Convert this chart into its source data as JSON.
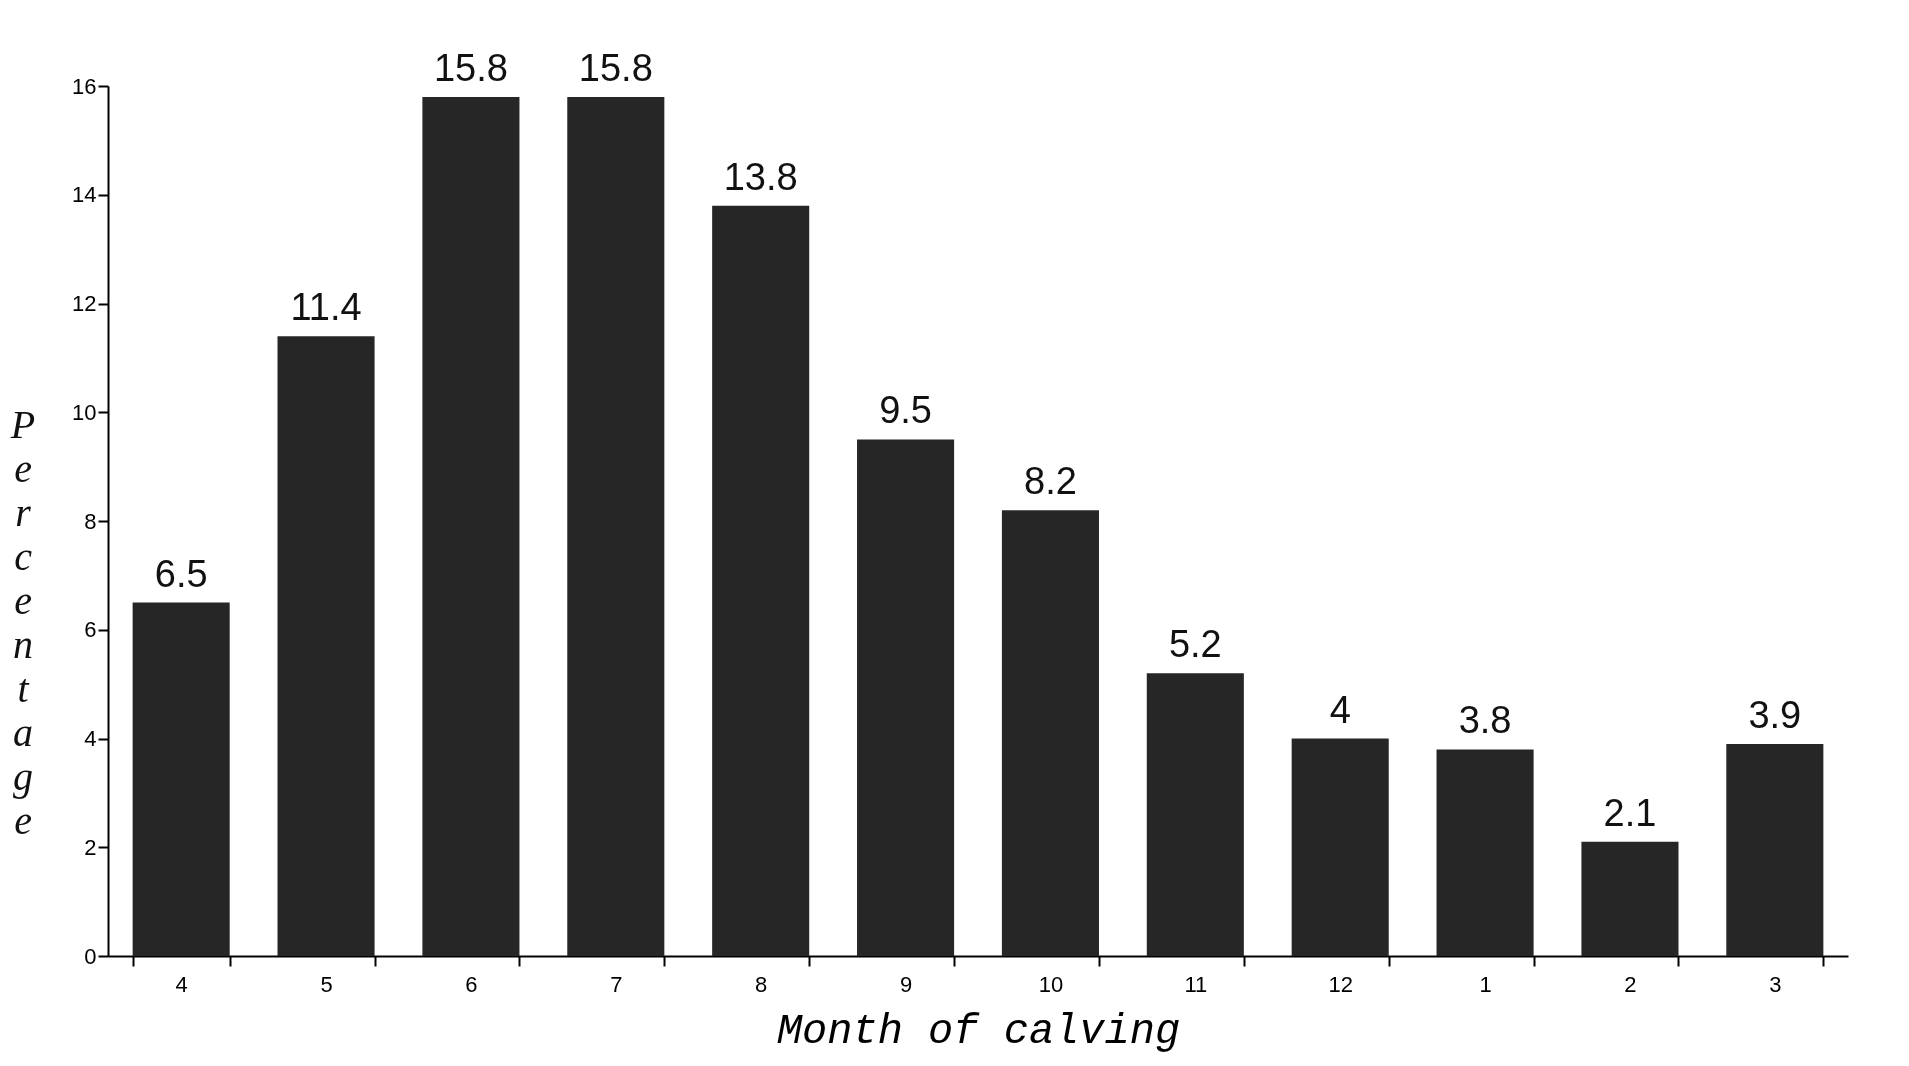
{
  "chart_data": {
    "type": "bar",
    "xlabel": "Month of calving",
    "ylabel": "Percentage",
    "categories": [
      "4",
      "5",
      "6",
      "7",
      "8",
      "9",
      "10",
      "11",
      "12",
      "1",
      "2",
      "3"
    ],
    "values": [
      6.5,
      11.4,
      15.8,
      15.8,
      13.8,
      9.5,
      8.2,
      5.2,
      4,
      3.8,
      2.1,
      3.9
    ],
    "color": "#262626",
    "ylim": [
      0,
      16
    ],
    "yticks": [
      0,
      2,
      4,
      6,
      8,
      10,
      12,
      14,
      16
    ],
    "data_labels": true,
    "grid": false
  }
}
